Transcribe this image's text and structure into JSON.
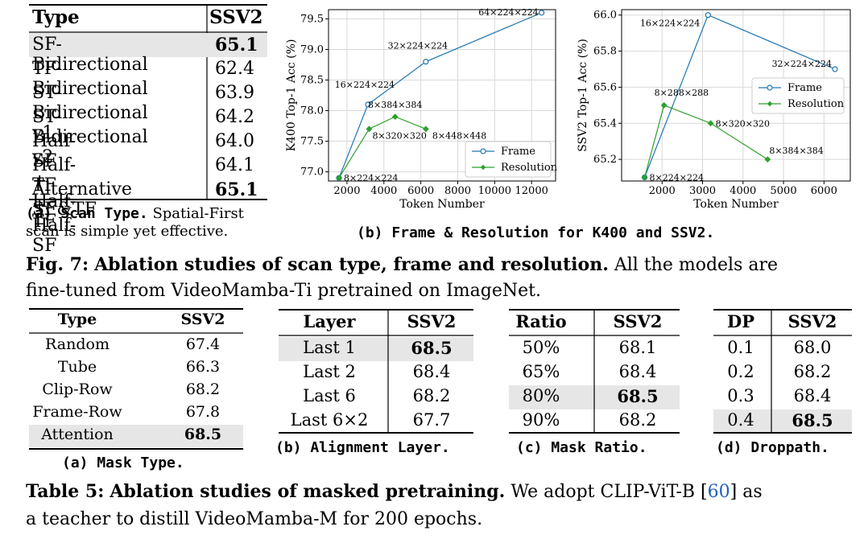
{
  "scan_table": {
    "headers": [
      "Type",
      "SSV2"
    ],
    "rows": [
      {
        "type": "SF-Bidirectional",
        "ssv2": "65.1",
        "highlight": true,
        "bold": true
      },
      {
        "type": "TF-Bidirectional",
        "ssv2": "62.4"
      },
      {
        "type": "ST-Bidirectional v1",
        "ssv2": "63.9"
      },
      {
        "type": "ST-Bidirectional v2",
        "ssv2": "64.2"
      },
      {
        "type": "Half-SF + Half-TF",
        "ssv2": "64.0"
      },
      {
        "type": "Half-TF + Half-SF",
        "ssv2": "64.1"
      },
      {
        "type": "Alternative SF&TF",
        "ssv2": "65.1",
        "bold": true
      }
    ],
    "caption_label": "(a) Scan Type.",
    "caption_text_1": "Spatial-First",
    "caption_text_2": "scan is simple yet effective."
  },
  "plots_caption": "(b) Frame & Resolution for K400 and SSV2.",
  "chart_data": [
    {
      "type": "line",
      "xlabel": "Token Number",
      "ylabel": "K400 Top-1 Acc (%)",
      "xlim": [
        1000,
        13300
      ],
      "ylim": [
        76.85,
        79.65
      ],
      "xticks": [
        2000,
        4000,
        6000,
        8000,
        10000,
        12000
      ],
      "yticks": [
        77.0,
        77.5,
        78.0,
        78.5,
        79.0,
        79.5
      ],
      "ytick_labels": [
        "77.0",
        "77.5",
        "78.0",
        "78.5",
        "79.0",
        "79.5"
      ],
      "grid": true,
      "legend": "bottom-right",
      "series": [
        {
          "name": "Frame",
          "color": "#1f77b4",
          "x": [
            1568,
            3136,
            6272,
            12544
          ],
          "y": [
            76.9,
            78.1,
            78.8,
            79.6
          ],
          "labels": [
            "8×224×224",
            "16×224×224",
            "32×224×224",
            "64×224×224"
          ]
        },
        {
          "name": "Resolution",
          "color": "#2ca02c",
          "x": [
            1568,
            3200,
            4608,
            6272
          ],
          "y": [
            76.9,
            77.7,
            77.9,
            77.7
          ],
          "labels": [
            "8×224×224",
            "8×320×320",
            "8×384×384",
            "8×448×448"
          ]
        }
      ]
    },
    {
      "type": "line",
      "xlabel": "Token Number",
      "ylabel": "SSV2 Top-1 Acc (%)",
      "xlim": [
        1000,
        6650
      ],
      "ylim": [
        65.08,
        66.03
      ],
      "xticks": [
        2000,
        3000,
        4000,
        5000,
        6000
      ],
      "yticks": [
        65.2,
        65.4,
        65.6,
        65.8,
        66.0
      ],
      "ytick_labels": [
        "65.2",
        "65.4",
        "65.6",
        "65.8",
        "66.0"
      ],
      "grid": true,
      "legend": "right",
      "series": [
        {
          "name": "Frame",
          "color": "#1f77b4",
          "x": [
            1568,
            3136,
            6272
          ],
          "y": [
            65.1,
            66.0,
            65.7
          ],
          "labels": [
            "8×224×224",
            "16×224×224",
            "32×224×224"
          ]
        },
        {
          "name": "Resolution",
          "color": "#2ca02c",
          "x": [
            1568,
            2048,
            3200,
            4608
          ],
          "y": [
            65.1,
            65.5,
            65.4,
            65.2
          ],
          "labels": [
            "",
            "8×288×288",
            "8×320×320",
            "8×384×384"
          ]
        }
      ]
    }
  ],
  "fig7": {
    "label": "Fig. 7:",
    "title": "Ablation studies of scan type, frame and resolution.",
    "rest_1": "All the models are",
    "rest_2": "fine-tuned from VideoMamba-Ti pretrained on ImageNet."
  },
  "mask_type_table": {
    "headers": [
      "Type",
      "SSV2"
    ],
    "rows": [
      {
        "type": "Random",
        "ssv2": "67.4"
      },
      {
        "type": "Tube",
        "ssv2": "66.3"
      },
      {
        "type": "Clip-Row",
        "ssv2": "68.2"
      },
      {
        "type": "Frame-Row",
        "ssv2": "67.8"
      },
      {
        "type": "Attention",
        "ssv2": "68.5",
        "highlight": true,
        "bold": true
      }
    ],
    "caption": "(a) Mask Type."
  },
  "layer_table": {
    "headers": [
      "Layer",
      "SSV2"
    ],
    "rows": [
      {
        "a": "Last 1",
        "b": "68.5",
        "highlight": true,
        "bold": true
      },
      {
        "a": "Last 2",
        "b": "68.4"
      },
      {
        "a": "Last 6",
        "b": "68.2"
      },
      {
        "a": "Last 6×2",
        "b": "67.7"
      }
    ],
    "caption": "(b) Alignment Layer."
  },
  "ratio_table": {
    "headers": [
      "Ratio",
      "SSV2"
    ],
    "rows": [
      {
        "a": "50%",
        "b": "68.1"
      },
      {
        "a": "65%",
        "b": "68.4"
      },
      {
        "a": "80%",
        "b": "68.5",
        "highlight": true,
        "bold": true
      },
      {
        "a": "90%",
        "b": "68.2"
      }
    ],
    "caption": "(c) Mask Ratio."
  },
  "dp_table": {
    "headers": [
      "DP",
      "SSV2"
    ],
    "rows": [
      {
        "a": "0.1",
        "b": "68.0"
      },
      {
        "a": "0.2",
        "b": "68.2"
      },
      {
        "a": "0.3",
        "b": "68.4"
      },
      {
        "a": "0.4",
        "b": "68.5",
        "highlight": true,
        "bold": true
      }
    ],
    "caption": "(d) Droppath."
  },
  "table5": {
    "label": "Table 5:",
    "title": "Ablation studies of masked pretraining.",
    "rest_1": "We adopt CLIP-ViT-B [",
    "ref": "60",
    "rest_1b": "] as",
    "rest_2": "a teacher to distill VideoMamba-M for 200 epochs.",
    "ref_color": "#1f5fbf"
  }
}
